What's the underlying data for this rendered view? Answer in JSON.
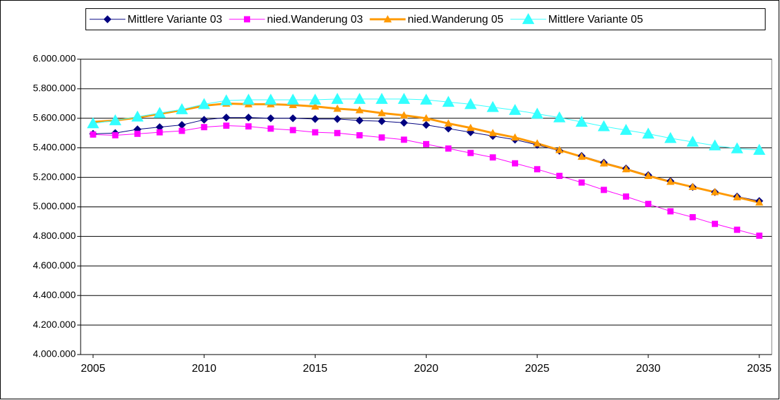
{
  "chart_data": {
    "type": "line",
    "x": [
      2005,
      2006,
      2007,
      2008,
      2009,
      2010,
      2011,
      2012,
      2013,
      2014,
      2015,
      2016,
      2017,
      2018,
      2019,
      2020,
      2021,
      2022,
      2023,
      2024,
      2025,
      2026,
      2027,
      2028,
      2029,
      2030,
      2031,
      2032,
      2033,
      2034,
      2035
    ],
    "xlim": [
      2004.44,
      2035.56
    ],
    "xticks": [
      2005,
      2010,
      2015,
      2020,
      2025,
      2030,
      2035
    ],
    "ylim": [
      4000000,
      6000000
    ],
    "yticks": [
      {
        "value": 4000000,
        "label": "4.000.000"
      },
      {
        "value": 4200000,
        "label": "4.200.000"
      },
      {
        "value": 4400000,
        "label": "4.400.000"
      },
      {
        "value": 4600000,
        "label": "4.600.000"
      },
      {
        "value": 4800000,
        "label": "4.800.000"
      },
      {
        "value": 5000000,
        "label": "5.000.000"
      },
      {
        "value": 5200000,
        "label": "5.200.000"
      },
      {
        "value": 5400000,
        "label": "5.400.000"
      },
      {
        "value": 5600000,
        "label": "5.600.000"
      },
      {
        "value": 5800000,
        "label": "5.800.000"
      },
      {
        "value": 6000000,
        "label": "6.000.000"
      }
    ],
    "grid": true,
    "legend": "top",
    "series": [
      {
        "name": "Mittlere Variante 03",
        "color": "#000080",
        "marker": "diamond",
        "line_width": 1,
        "values": [
          5495000,
          5500000,
          5525000,
          5540000,
          5555000,
          5590000,
          5605000,
          5605000,
          5600000,
          5600000,
          5595000,
          5595000,
          5585000,
          5580000,
          5570000,
          5555000,
          5530000,
          5505000,
          5480000,
          5455000,
          5420000,
          5380000,
          5345000,
          5300000,
          5260000,
          5215000,
          5175000,
          5135000,
          5100000,
          5070000,
          5040000
        ]
      },
      {
        "name": "nied.Wanderung 03",
        "color": "#ff00ff",
        "marker": "square",
        "line_width": 1,
        "values": [
          5490000,
          5485000,
          5495000,
          5505000,
          5515000,
          5540000,
          5550000,
          5545000,
          5530000,
          5520000,
          5505000,
          5500000,
          5485000,
          5470000,
          5455000,
          5425000,
          5395000,
          5365000,
          5335000,
          5295000,
          5255000,
          5210000,
          5165000,
          5115000,
          5070000,
          5020000,
          4970000,
          4930000,
          4885000,
          4845000,
          4805000
        ]
      },
      {
        "name": "nied.Wanderung 05",
        "color": "#ff9900",
        "marker": "triangle",
        "line_width": 3,
        "values": [
          5575000,
          5585000,
          5605000,
          5630000,
          5655000,
          5685000,
          5700000,
          5695000,
          5695000,
          5690000,
          5680000,
          5665000,
          5655000,
          5635000,
          5620000,
          5600000,
          5565000,
          5535000,
          5500000,
          5470000,
          5430000,
          5385000,
          5340000,
          5295000,
          5255000,
          5210000,
          5170000,
          5135000,
          5100000,
          5065000,
          5030000
        ]
      },
      {
        "name": "Mittlere Variante 05",
        "color": "#33ffff",
        "marker": "triangle",
        "line_width": 1,
        "values": [
          5565000,
          5585000,
          5610000,
          5635000,
          5660000,
          5695000,
          5720000,
          5725000,
          5725000,
          5725000,
          5725000,
          5730000,
          5730000,
          5730000,
          5730000,
          5725000,
          5710000,
          5695000,
          5675000,
          5655000,
          5630000,
          5605000,
          5575000,
          5545000,
          5520000,
          5495000,
          5465000,
          5440000,
          5415000,
          5395000,
          5385000
        ]
      }
    ]
  }
}
